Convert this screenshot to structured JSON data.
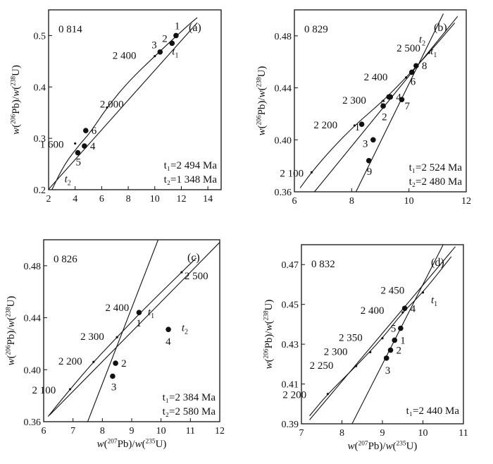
{
  "chart_data": [
    {
      "type": "scatter",
      "panel": "(a)",
      "sample": "0 814",
      "xlabel": "",
      "ylabel": "w(206Pb)/w(238U)",
      "xlim": [
        2,
        15
      ],
      "ylim": [
        0.2,
        0.55
      ],
      "xticks": [
        "2",
        "4",
        "6",
        "8",
        "10",
        "12",
        "14"
      ],
      "yticks": [
        "0.2",
        "0.3",
        "0.4",
        "0.5"
      ],
      "concordia": [
        [
          2.25,
          0.2
        ],
        [
          3.2,
          0.25
        ],
        [
          4.4,
          0.29
        ],
        [
          5.1,
          0.31
        ],
        [
          6.4,
          0.36
        ],
        [
          8.0,
          0.41
        ],
        [
          10.0,
          0.46
        ],
        [
          12.5,
          0.52
        ],
        [
          13.2,
          0.535
        ]
      ],
      "concordia_labels": [
        {
          "text": "1 600",
          "x": 4.0,
          "y": 0.29
        },
        {
          "text": "2 000",
          "x": 6.4,
          "y": 0.36
        },
        {
          "text": "2 400",
          "x": 10.0,
          "y": 0.46
        }
      ],
      "discordia": [
        [
          1.8,
          0.195
        ],
        [
          13.2,
          0.525
        ]
      ],
      "points": [
        {
          "label": "1",
          "x": 11.6,
          "y": 0.5
        },
        {
          "label": "2",
          "x": 11.3,
          "y": 0.485
        },
        {
          "label": "3",
          "x": 10.4,
          "y": 0.468
        },
        {
          "label": "4",
          "x": 4.7,
          "y": 0.285
        },
        {
          "label": "5",
          "x": 4.2,
          "y": 0.272
        },
        {
          "label": "6",
          "x": 4.8,
          "y": 0.315
        }
      ],
      "intercept_labels": [
        {
          "text": "t1",
          "x": 11.3,
          "y": 0.468
        },
        {
          "text": "t2",
          "x": 3.2,
          "y": 0.22
        }
      ],
      "ages": [
        "t₁=2 494 Ma",
        "t₂=1 348 Ma"
      ]
    },
    {
      "type": "scatter",
      "panel": "(b)",
      "sample": "0 829",
      "xlabel": "",
      "ylabel": "w(206Pb)/w(238U)",
      "xlim": [
        6,
        12
      ],
      "ylim": [
        0.36,
        0.5
      ],
      "xticks": [
        "6",
        "8",
        "10",
        "12"
      ],
      "yticks": [
        "0.36",
        "0.40",
        "0.44",
        "0.48"
      ],
      "concordia": [
        [
          6.2,
          0.363
        ],
        [
          6.6,
          0.375
        ],
        [
          7.3,
          0.393
        ],
        [
          8.1,
          0.411
        ],
        [
          9.1,
          0.43
        ],
        [
          9.9,
          0.448
        ],
        [
          10.7,
          0.467
        ],
        [
          11.6,
          0.49
        ]
      ],
      "concordia_labels": [
        {
          "text": "2 100",
          "x": 6.6,
          "y": 0.375
        },
        {
          "text": "2 200",
          "x": 8.1,
          "y": 0.411
        },
        {
          "text": "2 300",
          "x": 9.1,
          "y": 0.43
        },
        {
          "text": "2 400",
          "x": 9.9,
          "y": 0.448
        },
        {
          "text": "2 500",
          "x": 10.7,
          "y": 0.467
        }
      ],
      "discordia": [
        [
          6.7,
          0.36
        ],
        [
          11.7,
          0.495
        ]
      ],
      "discordia2": [
        [
          8.15,
          0.36
        ],
        [
          11.2,
          0.497
        ]
      ],
      "points": [
        {
          "label": "1",
          "x": 8.35,
          "y": 0.412
        },
        {
          "label": "2",
          "x": 9.1,
          "y": 0.426
        },
        {
          "label": "3",
          "x": 8.75,
          "y": 0.4
        },
        {
          "label": "4",
          "x": 9.35,
          "y": 0.433
        },
        {
          "label": "5",
          "x": 9.3,
          "y": 0.433
        },
        {
          "label": "6",
          "x": 10.1,
          "y": 0.452
        },
        {
          "label": "7",
          "x": 9.75,
          "y": 0.431
        },
        {
          "label": "8",
          "x": 10.25,
          "y": 0.457
        },
        {
          "label": "9",
          "x": 8.6,
          "y": 0.384
        }
      ],
      "intercept_labels": [
        {
          "text": "t2",
          "x": 10.35,
          "y": 0.477
        },
        {
          "text": "t1",
          "x": 10.75,
          "y": 0.468
        }
      ],
      "ages": [
        "t₁=2 524 Ma",
        "t₂=2 480 Ma"
      ]
    },
    {
      "type": "scatter",
      "panel": "(c)",
      "sample": "0 826",
      "xlabel": "w(207Pb)/w(235U)",
      "ylabel": "w(206Pb)/w(238U)",
      "xlim": [
        6,
        12
      ],
      "ylim": [
        0.36,
        0.5
      ],
      "xticks": [
        "6",
        "7",
        "8",
        "9",
        "10",
        "11",
        "12"
      ],
      "yticks": [
        "0.36",
        "0.40",
        "0.44",
        "0.48"
      ],
      "concordia": [
        [
          6.15,
          0.364
        ],
        [
          6.9,
          0.385
        ],
        [
          7.7,
          0.406
        ],
        [
          8.5,
          0.425
        ],
        [
          9.3,
          0.444
        ],
        [
          10.7,
          0.475
        ],
        [
          11.2,
          0.486
        ]
      ],
      "concordia_labels": [
        {
          "text": "2 100",
          "x": 6.9,
          "y": 0.385
        },
        {
          "text": "2 200",
          "x": 7.7,
          "y": 0.406
        },
        {
          "text": "2 300",
          "x": 8.5,
          "y": 0.425
        },
        {
          "text": "2 400",
          "x": 9.3,
          "y": 0.444
        },
        {
          "text": "2 500",
          "x": 10.7,
          "y": 0.475
        }
      ],
      "discordia": [
        [
          6.2,
          0.365
        ],
        [
          12.0,
          0.498
        ]
      ],
      "discordia2": [
        [
          7.5,
          0.36
        ],
        [
          9.9,
          0.5
        ]
      ],
      "points": [
        {
          "label": "1",
          "x": 9.25,
          "y": 0.444
        },
        {
          "label": "2",
          "x": 8.45,
          "y": 0.405
        },
        {
          "label": "3",
          "x": 8.35,
          "y": 0.395
        },
        {
          "label": "4",
          "x": 10.25,
          "y": 0.431
        }
      ],
      "intercept_labels": [
        {
          "text": "t1",
          "x": 9.55,
          "y": 0.444
        },
        {
          "text": "t2",
          "x": 10.7,
          "y": 0.432
        }
      ],
      "ages": [
        "t₁=2 384 Ma",
        "t₂=2 580 Ma"
      ]
    },
    {
      "type": "scatter",
      "panel": "(d)",
      "sample": "0 832",
      "xlabel": "w(207Pb)/w(235U)",
      "ylabel": "w(206Pb)/w(238U)",
      "xlim": [
        7,
        11
      ],
      "ylim": [
        0.39,
        0.48
      ],
      "xticks": [
        "7",
        "8",
        "9",
        "10",
        "11"
      ],
      "yticks": [
        "0.39",
        "0.41",
        "0.43",
        "0.45",
        "0.47"
      ],
      "concordia": [
        [
          7.2,
          0.394
        ],
        [
          7.65,
          0.405
        ],
        [
          8.35,
          0.419
        ],
        [
          9.0,
          0.433
        ],
        [
          9.5,
          0.446
        ],
        [
          10.0,
          0.456
        ],
        [
          10.7,
          0.474
        ]
      ],
      "concordia_labels": [
        {
          "text": "2 200",
          "x": 7.65,
          "y": 0.405
        },
        {
          "text": "2 250",
          "x": 8.35,
          "y": 0.419
        },
        {
          "text": "2 300",
          "x": 8.7,
          "y": 0.426
        },
        {
          "text": "2 350",
          "x": 9.0,
          "y": 0.433
        },
        {
          "text": "2 400",
          "x": 9.5,
          "y": 0.446
        },
        {
          "text": "2 450",
          "x": 10.0,
          "y": 0.456
        }
      ],
      "discordia": [
        [
          7.2,
          0.392
        ],
        [
          10.8,
          0.479
        ]
      ],
      "discordia2": [
        [
          8.25,
          0.39
        ],
        [
          10.5,
          0.48
        ]
      ],
      "points": [
        {
          "label": "1",
          "x": 9.3,
          "y": 0.432
        },
        {
          "label": "2",
          "x": 9.2,
          "y": 0.427
        },
        {
          "label": "3",
          "x": 9.1,
          "y": 0.423
        },
        {
          "label": "4",
          "x": 9.55,
          "y": 0.448
        },
        {
          "label": "5",
          "x": 9.45,
          "y": 0.438
        }
      ],
      "intercept_labels": [
        {
          "text": "t1",
          "x": 10.2,
          "y": 0.452
        }
      ],
      "ages": [
        "t₁=2 440 Ma"
      ]
    }
  ]
}
